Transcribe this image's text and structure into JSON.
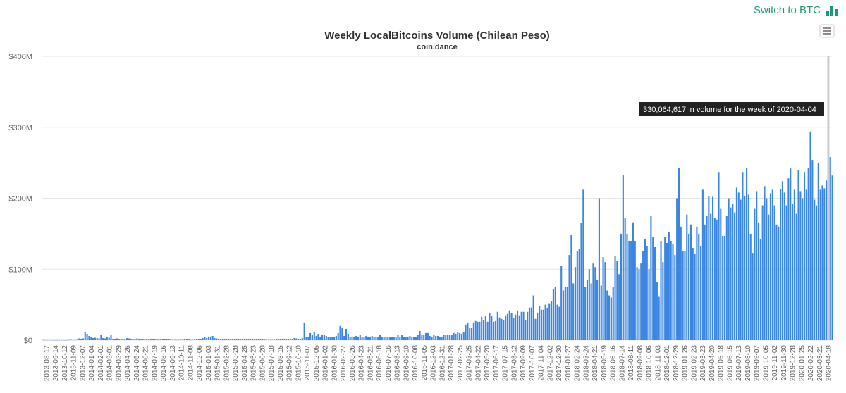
{
  "header": {
    "switch_label": "Switch to BTC",
    "switch_icon": "bar-chart-icon"
  },
  "menu_icon": "hamburger-menu-icon",
  "tooltip": {
    "text": "330,064,617 in volume for the week of 2020-04-04",
    "week": "2020-04-04",
    "value": 330064617
  },
  "colors": {
    "bar": "#3b86e0",
    "accent": "#1a9a78",
    "tooltip_bg": "#222222"
  },
  "chart_data": {
    "type": "bar",
    "title": "Weekly LocalBitcoins Volume (Chilean Peso)",
    "subtitle": "coin.dance",
    "xlabel": "",
    "ylabel": "",
    "ylim": [
      0,
      400000000
    ],
    "y_ticks": [
      "$0",
      "$100M",
      "$200M",
      "$300M",
      "$400M"
    ],
    "x_tick_labels": [
      "2013-08-17",
      "2013-09-14",
      "2013-10-12",
      "2013-11-09",
      "2013-12-07",
      "2014-01-04",
      "2014-02-01",
      "2014-03-01",
      "2014-03-29",
      "2014-04-26",
      "2014-05-24",
      "2014-06-21",
      "2014-07-19",
      "2014-08-16",
      "2014-09-13",
      "2014-10-11",
      "2014-11-08",
      "2014-12-06",
      "2015-01-03",
      "2015-01-31",
      "2015-02-28",
      "2015-03-28",
      "2015-04-25",
      "2015-05-23",
      "2015-06-20",
      "2015-07-18",
      "2015-08-15",
      "2015-09-12",
      "2015-10-10",
      "2015-11-07",
      "2015-12-05",
      "2016-01-02",
      "2016-01-30",
      "2016-02-27",
      "2016-03-26",
      "2016-04-23",
      "2016-05-21",
      "2016-06-18",
      "2016-07-16",
      "2016-08-13",
      "2016-09-10",
      "2016-10-08",
      "2016-11-05",
      "2016-12-03",
      "2016-12-31",
      "2017-01-28",
      "2017-02-25",
      "2017-03-25",
      "2017-04-22",
      "2017-05-20",
      "2017-06-17",
      "2017-07-15",
      "2017-08-12",
      "2017-09-09",
      "2017-10-07",
      "2017-11-04",
      "2017-12-02",
      "2017-12-30",
      "2018-01-27",
      "2018-02-24",
      "2018-03-24",
      "2018-04-21",
      "2018-05-19",
      "2018-06-16",
      "2018-07-14",
      "2018-08-11",
      "2018-09-08",
      "2018-10-06",
      "2018-11-03",
      "2018-12-01",
      "2018-12-29",
      "2019-01-26",
      "2019-02-23",
      "2019-03-23",
      "2019-04-20",
      "2019-05-18",
      "2019-06-15",
      "2019-07-13",
      "2019-08-10",
      "2019-09-07",
      "2019-10-05",
      "2019-11-02",
      "2019-11-30",
      "2019-12-28",
      "2020-01-25",
      "2020-02-22",
      "2020-03-21",
      "2020-04-18"
    ],
    "values_millions": [
      0.3,
      0.2,
      0.1,
      0.1,
      0.2,
      0.1,
      0.1,
      0.1,
      0.2,
      0.1,
      0.1,
      0.1,
      0.1,
      0.3,
      0.4,
      0.2,
      0.2,
      0.6,
      2.5,
      2,
      2.5,
      12,
      9,
      6,
      4,
      3,
      3.5,
      3,
      2.5,
      8,
      3,
      2.5,
      4,
      3.5,
      7,
      2,
      2,
      2.5,
      1.5,
      2,
      1.5,
      2,
      3,
      2.5,
      2,
      1,
      1.5,
      2.5,
      1,
      0.8,
      1.5,
      1,
      1,
      1,
      2,
      1.5,
      1.5,
      1,
      1,
      2,
      1.5,
      1.5,
      1,
      1,
      0.8,
      0.5,
      0.5,
      0.3,
      0.5,
      0.5,
      0.8,
      1,
      1.2,
      1,
      0.3,
      0.5,
      0.8,
      1.5,
      1,
      1.2,
      3,
      4.5,
      3,
      4,
      5,
      6,
      3,
      2.5,
      2,
      1.5,
      2,
      2,
      1.5,
      2,
      1.5,
      1,
      1.5,
      2,
      1.5,
      1.5,
      2,
      1.5,
      1.5,
      1,
      1,
      1,
      1,
      1,
      1,
      1,
      1,
      0.8,
      0.5,
      0.5,
      0.5,
      0.5,
      0.5,
      1,
      1,
      1.5,
      1,
      1.5,
      2,
      1.5,
      2,
      2,
      3,
      2.5,
      2,
      2,
      3,
      25,
      5,
      4,
      10,
      8,
      12,
      6,
      9,
      5,
      7,
      8,
      6,
      4,
      4,
      5,
      5,
      6,
      10,
      20,
      18,
      6,
      16,
      9,
      5,
      5,
      4,
      6,
      5,
      7,
      5,
      4,
      6,
      5,
      5,
      6,
      4.5,
      5,
      4,
      7,
      5,
      4,
      5,
      4.5,
      4,
      4,
      4.5,
      5,
      8,
      5,
      7,
      5,
      4,
      5,
      6,
      5,
      5,
      4,
      7,
      13,
      8,
      7,
      10,
      10,
      6,
      5,
      8,
      6,
      6,
      5,
      5,
      7,
      7,
      8,
      7,
      8,
      10,
      9,
      11,
      10,
      9,
      12,
      22,
      25,
      18,
      17,
      25,
      27,
      26,
      26,
      33,
      28,
      34,
      26,
      38,
      34,
      26,
      27,
      40,
      32,
      30,
      28,
      35,
      37,
      42,
      38,
      31,
      36,
      42,
      35,
      40,
      40,
      28,
      40,
      46,
      46,
      63,
      30,
      38,
      48,
      43,
      43,
      50,
      45,
      52,
      55,
      72,
      75,
      50,
      47,
      105,
      70,
      75,
      75,
      120,
      148,
      80,
      103,
      125,
      128,
      165,
      212,
      75,
      85,
      100,
      80,
      108,
      103,
      85,
      200,
      77,
      117,
      110,
      70,
      63,
      60,
      75,
      118,
      112,
      93,
      150,
      233,
      172,
      150,
      140,
      140,
      166,
      140,
      103,
      100,
      108,
      125,
      143,
      133,
      100,
      175,
      145,
      132,
      82,
      62,
      140,
      110,
      145,
      137,
      152,
      140,
      135,
      120,
      200,
      243,
      160,
      125,
      125,
      177,
      150,
      163,
      130,
      122,
      160,
      150,
      133,
      212,
      163,
      175,
      203,
      178,
      202,
      172,
      170,
      237,
      185,
      147,
      147,
      175,
      200,
      187,
      192,
      180,
      215,
      208,
      198,
      237,
      203,
      243,
      205,
      150,
      123,
      185,
      210,
      166,
      143,
      190,
      217,
      200,
      177,
      207,
      212,
      190,
      163,
      160,
      213,
      224,
      208,
      190,
      228,
      242,
      192,
      212,
      178,
      240,
      210,
      200,
      237,
      212,
      243,
      294,
      254,
      198,
      190,
      250,
      212,
      218,
      214,
      225,
      330,
      258,
      232
    ]
  }
}
